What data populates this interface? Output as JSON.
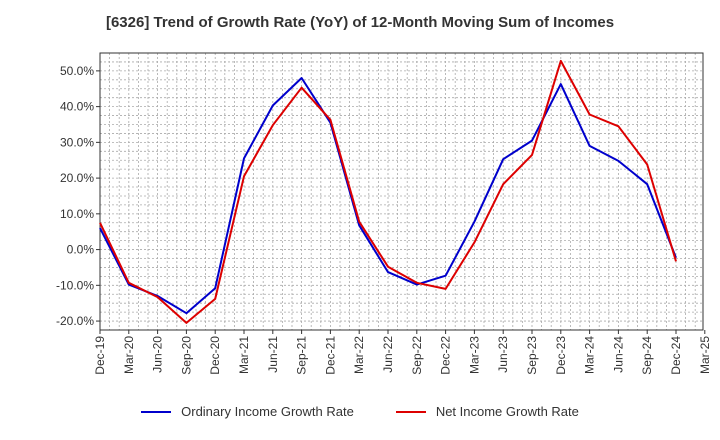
{
  "chart_data": {
    "type": "line",
    "title": "[6326]  Trend of Growth Rate (YoY) of 12-Month Moving Sum of Incomes",
    "x_ticks": [
      "Dec-19",
      "Mar-20",
      "Jun-20",
      "Sep-20",
      "Dec-20",
      "Mar-21",
      "Jun-21",
      "Sep-21",
      "Dec-21",
      "Mar-22",
      "Jun-22",
      "Sep-22",
      "Dec-22",
      "Mar-23",
      "Jun-23",
      "Sep-23",
      "Dec-23",
      "Mar-24",
      "Jun-24",
      "Sep-24",
      "Dec-24",
      "Mar-25"
    ],
    "x": [
      "Dec-19",
      "Mar-20",
      "Jun-20",
      "Sep-20",
      "Dec-20",
      "Mar-21",
      "Jun-21",
      "Sep-21",
      "Dec-21",
      "Mar-22",
      "Jun-22",
      "Sep-22",
      "Dec-22",
      "Mar-23",
      "Jun-23",
      "Sep-23",
      "Dec-23",
      "Mar-24",
      "Jun-24",
      "Sep-24",
      "Dec-24"
    ],
    "y_ticks": [
      "50.0%",
      "40.0%",
      "30.0%",
      "20.0%",
      "10.0%",
      "0.0%",
      "-10.0%",
      "-20.0%"
    ],
    "y_tick_values": [
      50,
      40,
      30,
      20,
      10,
      0,
      -10,
      -20
    ],
    "ylim": [
      -22.5,
      55
    ],
    "grid": true,
    "legend_position": "bottom",
    "series": [
      {
        "name": "Ordinary Income Growth Rate",
        "color": "#0000cc",
        "values": [
          6.0,
          -9.8,
          -13.0,
          -17.8,
          -10.8,
          25.5,
          40.3,
          48.0,
          35.5,
          6.8,
          -6.3,
          -9.8,
          -7.3,
          7.8,
          25.3,
          30.5,
          46.3,
          29.0,
          24.8,
          18.3,
          -2.3
        ]
      },
      {
        "name": "Net Income Growth Rate",
        "color": "#dd0000",
        "values": [
          7.5,
          -9.3,
          -13.3,
          -20.5,
          -13.8,
          20.5,
          34.8,
          45.3,
          36.3,
          7.8,
          -4.8,
          -9.3,
          -11.0,
          2.0,
          18.3,
          26.5,
          52.8,
          37.8,
          34.5,
          23.8,
          -3.3
        ]
      }
    ]
  }
}
